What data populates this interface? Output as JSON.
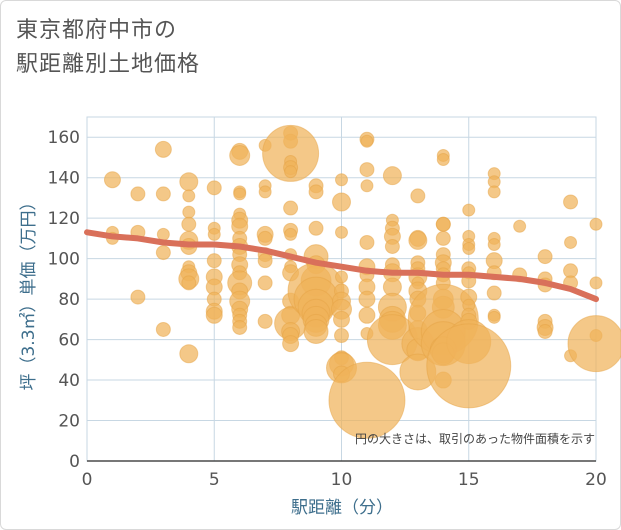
{
  "title": {
    "line1": "東京都府中市の",
    "line2": "駅距離別土地価格"
  },
  "chart_data": {
    "type": "scatter",
    "xlabel": "駅距離（分）",
    "ylabel": "坪（3.3㎡）単価（万円）",
    "xlim": [
      0,
      20
    ],
    "ylim": [
      0,
      170
    ],
    "xticks": [
      0,
      5,
      10,
      15,
      20
    ],
    "yticks": [
      0,
      20,
      40,
      60,
      80,
      100,
      120,
      140,
      160
    ],
    "grid": true,
    "annotation": "円の大きさは、取引のあった物件面積を示す",
    "colors": {
      "bubble": "#f0b35a",
      "trend": "#d9705a",
      "grid": "#c7d7e3",
      "axis_text": "#3d6e8c"
    },
    "points": [
      [
        1,
        139,
        8
      ],
      [
        1,
        113,
        6
      ],
      [
        1,
        110,
        6
      ],
      [
        2,
        132,
        7
      ],
      [
        2,
        113,
        7
      ],
      [
        2,
        81,
        7
      ],
      [
        3,
        154,
        8
      ],
      [
        3,
        132,
        7
      ],
      [
        3,
        112,
        6
      ],
      [
        3,
        103,
        7
      ],
      [
        3,
        65,
        7
      ],
      [
        4,
        138,
        9
      ],
      [
        4,
        131,
        6
      ],
      [
        4,
        123,
        6
      ],
      [
        4,
        117,
        7
      ],
      [
        4,
        109,
        9
      ],
      [
        4,
        106,
        8
      ],
      [
        4,
        96,
        6
      ],
      [
        4,
        93,
        8
      ],
      [
        4,
        90,
        10
      ],
      [
        4,
        88,
        7
      ],
      [
        4,
        53,
        9
      ],
      [
        5,
        135,
        7
      ],
      [
        5,
        115,
        6
      ],
      [
        5,
        112,
        6
      ],
      [
        5,
        99,
        7
      ],
      [
        5,
        91,
        8
      ],
      [
        5,
        86,
        8
      ],
      [
        5,
        80,
        7
      ],
      [
        5,
        74,
        8
      ],
      [
        5,
        72,
        8
      ],
      [
        6,
        153,
        8
      ],
      [
        6,
        151,
        10
      ],
      [
        6,
        133,
        6
      ],
      [
        6,
        132,
        6
      ],
      [
        6,
        122,
        6
      ],
      [
        6,
        119,
        8
      ],
      [
        6,
        116,
        8
      ],
      [
        6,
        110,
        7
      ],
      [
        6,
        106,
        8
      ],
      [
        6,
        102,
        7
      ],
      [
        6,
        97,
        8
      ],
      [
        6,
        93,
        7
      ],
      [
        6,
        88,
        12
      ],
      [
        6,
        84,
        8
      ],
      [
        6,
        79,
        10
      ],
      [
        6,
        75,
        8
      ],
      [
        6,
        72,
        7
      ],
      [
        6,
        69,
        7
      ],
      [
        6,
        66,
        7
      ],
      [
        7,
        156,
        6
      ],
      [
        7,
        136,
        6
      ],
      [
        7,
        133,
        6
      ],
      [
        7,
        112,
        8
      ],
      [
        7,
        110,
        7
      ],
      [
        7,
        102,
        7
      ],
      [
        7,
        99,
        7
      ],
      [
        7,
        88,
        7
      ],
      [
        7,
        69,
        7
      ],
      [
        8,
        162,
        7
      ],
      [
        8,
        158,
        7
      ],
      [
        8,
        152,
        28
      ],
      [
        8,
        148,
        6
      ],
      [
        8,
        145,
        7
      ],
      [
        8,
        143,
        6
      ],
      [
        8,
        125,
        7
      ],
      [
        8,
        114,
        7
      ],
      [
        8,
        112,
        6
      ],
      [
        8,
        102,
        6
      ],
      [
        8,
        96,
        6
      ],
      [
        8,
        93,
        8
      ],
      [
        8,
        79,
        8
      ],
      [
        8,
        72,
        9
      ],
      [
        8,
        68,
        16
      ],
      [
        8,
        64,
        9
      ],
      [
        8,
        62,
        8
      ],
      [
        8,
        58,
        8
      ],
      [
        9,
        136,
        7
      ],
      [
        9,
        133,
        7
      ],
      [
        9,
        115,
        7
      ],
      [
        9,
        101,
        12
      ],
      [
        9,
        97,
        9
      ],
      [
        9,
        89,
        15
      ],
      [
        9,
        84,
        28
      ],
      [
        9,
        80,
        22
      ],
      [
        9,
        76,
        18
      ],
      [
        9,
        73,
        14
      ],
      [
        9,
        70,
        13
      ],
      [
        9,
        67,
        11
      ],
      [
        9,
        64,
        12
      ],
      [
        10,
        139,
        6
      ],
      [
        10,
        128,
        9
      ],
      [
        10,
        113,
        6
      ],
      [
        10,
        91,
        6
      ],
      [
        10,
        84,
        7
      ],
      [
        10,
        79,
        9
      ],
      [
        10,
        75,
        10
      ],
      [
        10,
        70,
        8
      ],
      [
        10,
        62,
        7
      ],
      [
        10,
        51,
        7
      ],
      [
        10,
        48,
        12
      ],
      [
        10,
        46,
        15
      ],
      [
        10,
        43,
        8
      ],
      [
        11,
        159,
        7
      ],
      [
        11,
        158,
        6
      ],
      [
        11,
        144,
        7
      ],
      [
        11,
        136,
        6
      ],
      [
        11,
        108,
        7
      ],
      [
        11,
        96,
        8
      ],
      [
        11,
        92,
        7
      ],
      [
        11,
        86,
        8
      ],
      [
        11,
        80,
        8
      ],
      [
        11,
        72,
        8
      ],
      [
        11,
        63,
        6
      ],
      [
        11,
        30,
        38
      ],
      [
        12,
        141,
        9
      ],
      [
        12,
        119,
        6
      ],
      [
        12,
        115,
        7
      ],
      [
        12,
        111,
        8
      ],
      [
        12,
        106,
        7
      ],
      [
        12,
        97,
        7
      ],
      [
        12,
        93,
        9
      ],
      [
        12,
        86,
        9
      ],
      [
        12,
        76,
        14
      ],
      [
        12,
        70,
        13
      ],
      [
        12,
        67,
        14
      ],
      [
        12,
        60,
        25
      ],
      [
        13,
        131,
        7
      ],
      [
        13,
        110,
        8
      ],
      [
        13,
        109,
        9
      ],
      [
        13,
        98,
        7
      ],
      [
        13,
        95,
        7
      ],
      [
        13,
        91,
        9
      ],
      [
        13,
        88,
        6
      ],
      [
        13,
        84,
        9
      ],
      [
        13,
        80,
        8
      ],
      [
        13,
        73,
        8
      ],
      [
        13,
        65,
        9
      ],
      [
        13,
        58,
        16
      ],
      [
        13,
        55,
        11
      ],
      [
        13,
        44,
        18
      ],
      [
        14,
        151,
        6
      ],
      [
        14,
        149,
        6
      ],
      [
        14,
        117,
        7
      ],
      [
        14,
        117,
        7
      ],
      [
        14,
        110,
        7
      ],
      [
        14,
        102,
        7
      ],
      [
        14,
        98,
        8
      ],
      [
        14,
        95,
        7
      ],
      [
        14,
        92,
        7
      ],
      [
        14,
        88,
        7
      ],
      [
        14,
        80,
        10
      ],
      [
        14,
        76,
        11
      ],
      [
        14,
        70,
        35
      ],
      [
        14,
        64,
        22
      ],
      [
        14,
        58,
        22
      ],
      [
        14,
        55,
        13
      ],
      [
        14,
        53,
        11
      ],
      [
        14,
        40,
        8
      ],
      [
        15,
        124,
        6
      ],
      [
        15,
        111,
        6
      ],
      [
        15,
        107,
        6
      ],
      [
        15,
        105,
        6
      ],
      [
        15,
        95,
        7
      ],
      [
        15,
        93,
        6
      ],
      [
        15,
        89,
        7
      ],
      [
        15,
        81,
        8
      ],
      [
        15,
        77,
        6
      ],
      [
        15,
        72,
        7
      ],
      [
        15,
        69,
        8
      ],
      [
        15,
        59,
        22
      ],
      [
        15,
        47,
        42
      ],
      [
        16,
        142,
        6
      ],
      [
        16,
        138,
        6
      ],
      [
        16,
        133,
        6
      ],
      [
        16,
        110,
        6
      ],
      [
        16,
        107,
        6
      ],
      [
        16,
        99,
        8
      ],
      [
        16,
        93,
        7
      ],
      [
        16,
        83,
        7
      ],
      [
        16,
        72,
        6
      ],
      [
        16,
        71,
        6
      ],
      [
        17,
        116,
        6
      ],
      [
        17,
        92,
        7
      ],
      [
        18,
        101,
        7
      ],
      [
        18,
        90,
        7
      ],
      [
        18,
        87,
        7
      ],
      [
        18,
        69,
        7
      ],
      [
        18,
        66,
        8
      ],
      [
        18,
        64,
        7
      ],
      [
        19,
        128,
        7
      ],
      [
        19,
        108,
        6
      ],
      [
        19,
        94,
        7
      ],
      [
        19,
        88,
        7
      ],
      [
        19,
        52,
        6
      ],
      [
        20,
        117,
        6
      ],
      [
        20,
        88,
        6
      ],
      [
        20,
        62,
        6
      ],
      [
        20,
        58,
        28
      ]
    ],
    "trend": [
      [
        0,
        113
      ],
      [
        1,
        111
      ],
      [
        2,
        110
      ],
      [
        3,
        108
      ],
      [
        4,
        107
      ],
      [
        5,
        107
      ],
      [
        6,
        106
      ],
      [
        7,
        104
      ],
      [
        8,
        101
      ],
      [
        9,
        98
      ],
      [
        10,
        96
      ],
      [
        11,
        94
      ],
      [
        12,
        93
      ],
      [
        13,
        93
      ],
      [
        14,
        92
      ],
      [
        15,
        92
      ],
      [
        16,
        91
      ],
      [
        17,
        90
      ],
      [
        18,
        88
      ],
      [
        19,
        85
      ],
      [
        20,
        80
      ]
    ]
  }
}
